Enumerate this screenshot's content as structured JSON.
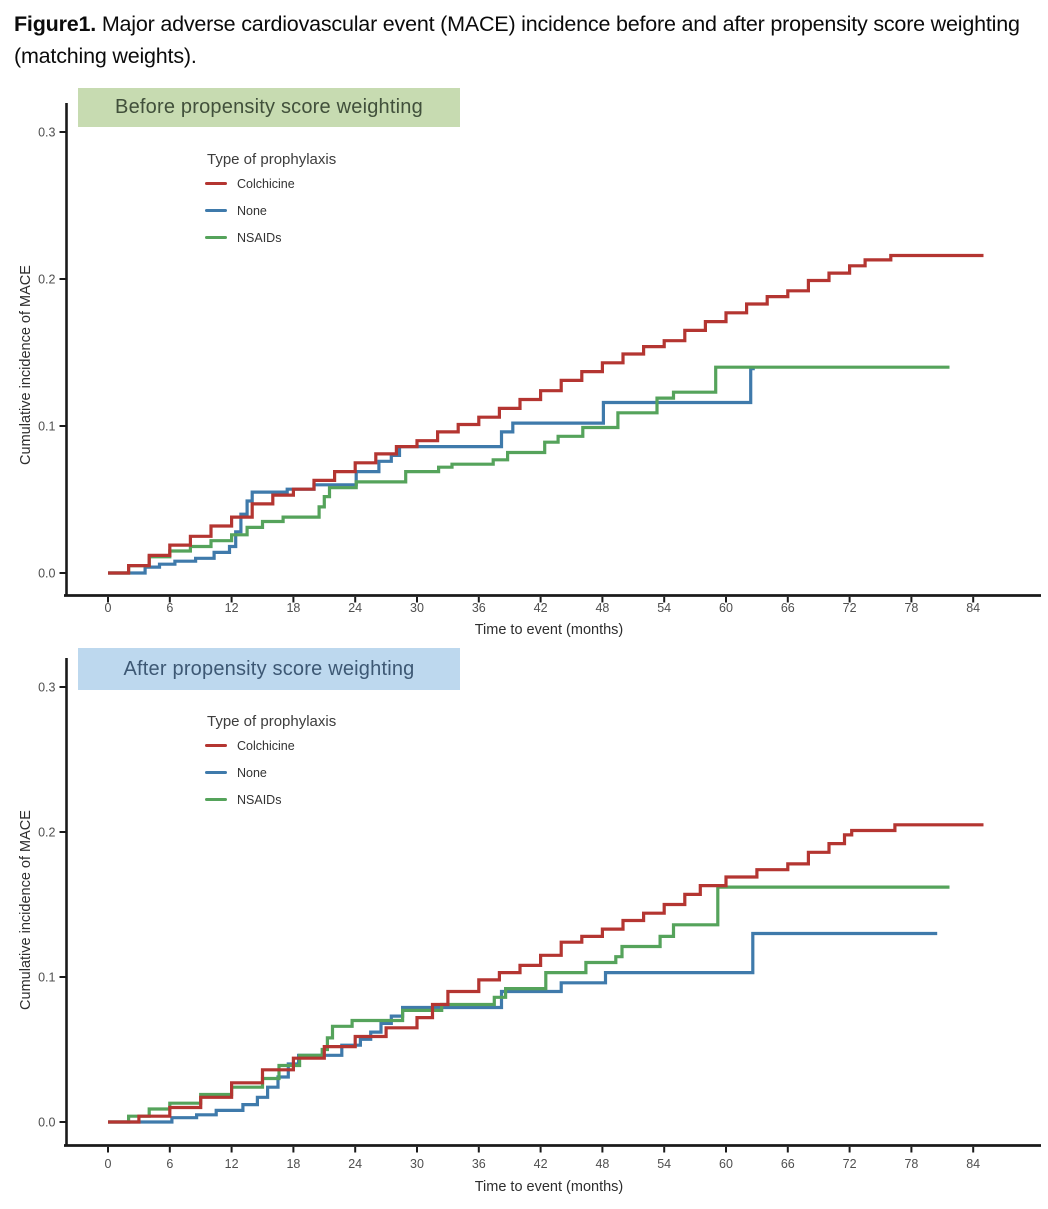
{
  "figure_title": {
    "label": "Figure1.",
    "text": "Major adverse cardiovascular event (MACE) incidence before and after propensity score weighting (matching weights)."
  },
  "colors": {
    "colchicine": "#b43531",
    "none": "#3f7aab",
    "nsaids": "#55a35b",
    "before_header_bg": "#c7dbb1",
    "before_header_text": "#41503b",
    "after_header_bg": "#bdd8ee",
    "after_header_text": "#3d5874",
    "axis_line": "#1a1a1a",
    "tick_label": "#4f4f4f",
    "axis_title": "#2e2e2e"
  },
  "chart_data": [
    {
      "type": "line",
      "step": true,
      "panel_label": "Before propensity score weighting",
      "legend": {
        "title": "Type of prophylaxis",
        "items": [
          {
            "label": "Colchicine",
            "color": "#b43531"
          },
          {
            "label": "None",
            "color": "#3f7aab"
          },
          {
            "label": "NSAIDs",
            "color": "#55a35b"
          }
        ]
      },
      "xlabel": "Time to event (months)",
      "ylabel": "Cumulative incidence of MACE",
      "x_ticks": [
        0,
        6,
        12,
        18,
        24,
        30,
        36,
        42,
        48,
        54,
        60,
        66,
        72,
        78,
        84
      ],
      "y_ticks": [
        "0.0",
        "0.1",
        "0.2",
        "0.3"
      ],
      "y_tick_values": [
        0,
        0.1,
        0.2,
        0.3
      ],
      "xlim": [
        0,
        87
      ],
      "ylim": [
        0,
        0.31
      ],
      "grid": false,
      "legend_position": "upper-left-inside",
      "series": [
        {
          "name": "Colchicine",
          "color": "#b43531",
          "points": [
            [
              0,
              0
            ],
            [
              2,
              0.005
            ],
            [
              4,
              0.012
            ],
            [
              6,
              0.019
            ],
            [
              8,
              0.025
            ],
            [
              10,
              0.032
            ],
            [
              12,
              0.038
            ],
            [
              14,
              0.047
            ],
            [
              16,
              0.053
            ],
            [
              18,
              0.057
            ],
            [
              20,
              0.063
            ],
            [
              22,
              0.069
            ],
            [
              24,
              0.075
            ],
            [
              26,
              0.081
            ],
            [
              28,
              0.086
            ],
            [
              30,
              0.09
            ],
            [
              32,
              0.096
            ],
            [
              34,
              0.101
            ],
            [
              36,
              0.106
            ],
            [
              38,
              0.112
            ],
            [
              40,
              0.118
            ],
            [
              42,
              0.124
            ],
            [
              44,
              0.131
            ],
            [
              46,
              0.137
            ],
            [
              48,
              0.143
            ],
            [
              50,
              0.149
            ],
            [
              52,
              0.154
            ],
            [
              54,
              0.158
            ],
            [
              56,
              0.165
            ],
            [
              58,
              0.171
            ],
            [
              60,
              0.177
            ],
            [
              62,
              0.183
            ],
            [
              64,
              0.188
            ],
            [
              66,
              0.192
            ],
            [
              68,
              0.199
            ],
            [
              70,
              0.204
            ],
            [
              72,
              0.209
            ],
            [
              73.5,
              0.213
            ],
            [
              76,
              0.216
            ],
            [
              85,
              0.216
            ]
          ]
        },
        {
          "name": "None",
          "color": "#3f7aab",
          "points": [
            [
              0,
              0
            ],
            [
              3.6,
              0.004
            ],
            [
              5,
              0.006
            ],
            [
              6.5,
              0.008
            ],
            [
              8.5,
              0.01
            ],
            [
              10.3,
              0.014
            ],
            [
              11.8,
              0.018
            ],
            [
              12.4,
              0.028
            ],
            [
              12.9,
              0.04
            ],
            [
              13.5,
              0.049
            ],
            [
              14,
              0.055
            ],
            [
              17.4,
              0.057
            ],
            [
              20,
              0.06
            ],
            [
              24.1,
              0.069
            ],
            [
              26.3,
              0.076
            ],
            [
              27.5,
              0.08
            ],
            [
              28.3,
              0.086
            ],
            [
              38.2,
              0.096
            ],
            [
              39.3,
              0.102
            ],
            [
              48.1,
              0.116
            ],
            [
              62.4,
              0.139
            ],
            [
              62.8,
              0.139
            ]
          ]
        },
        {
          "name": "NSAIDs",
          "color": "#55a35b",
          "points": [
            [
              0,
              0
            ],
            [
              2,
              0.005
            ],
            [
              4,
              0.011
            ],
            [
              6,
              0.015
            ],
            [
              8,
              0.018
            ],
            [
              10,
              0.022
            ],
            [
              12,
              0.026
            ],
            [
              13.5,
              0.031
            ],
            [
              15,
              0.035
            ],
            [
              17,
              0.038
            ],
            [
              20.5,
              0.045
            ],
            [
              21,
              0.052
            ],
            [
              21.5,
              0.058
            ],
            [
              24.1,
              0.062
            ],
            [
              28.9,
              0.069
            ],
            [
              32.1,
              0.072
            ],
            [
              33.4,
              0.074
            ],
            [
              37.4,
              0.077
            ],
            [
              38.8,
              0.082
            ],
            [
              42.4,
              0.089
            ],
            [
              43.7,
              0.093
            ],
            [
              46.1,
              0.099
            ],
            [
              49.5,
              0.109
            ],
            [
              53.3,
              0.119
            ],
            [
              54.9,
              0.123
            ],
            [
              59,
              0.14
            ],
            [
              81.7,
              0.14
            ]
          ]
        }
      ]
    },
    {
      "type": "line",
      "step": true,
      "panel_label": "After propensity score weighting",
      "legend": {
        "title": "Type of prophylaxis",
        "items": [
          {
            "label": "Colchicine",
            "color": "#b43531"
          },
          {
            "label": "None",
            "color": "#3f7aab"
          },
          {
            "label": "NSAIDs",
            "color": "#55a35b"
          }
        ]
      },
      "xlabel": "Time to event (months)",
      "ylabel": "Cumulative incidence of MACE",
      "x_ticks": [
        0,
        6,
        12,
        18,
        24,
        30,
        36,
        42,
        48,
        54,
        60,
        66,
        72,
        78,
        84
      ],
      "y_ticks": [
        "0.0",
        "0.1",
        "0.2",
        "0.3"
      ],
      "y_tick_values": [
        0,
        0.1,
        0.2,
        0.3
      ],
      "xlim": [
        0,
        87
      ],
      "ylim": [
        0,
        0.31
      ],
      "grid": false,
      "legend_position": "upper-left-inside",
      "series": [
        {
          "name": "Colchicine",
          "color": "#b43531",
          "points": [
            [
              0,
              0
            ],
            [
              3,
              0.004
            ],
            [
              6,
              0.01
            ],
            [
              9,
              0.017
            ],
            [
              12,
              0.027
            ],
            [
              15,
              0.036
            ],
            [
              18,
              0.044
            ],
            [
              21,
              0.052
            ],
            [
              24,
              0.059
            ],
            [
              27,
              0.065
            ],
            [
              30,
              0.072
            ],
            [
              31.5,
              0.081
            ],
            [
              33,
              0.09
            ],
            [
              36,
              0.098
            ],
            [
              38,
              0.103
            ],
            [
              40,
              0.108
            ],
            [
              42,
              0.115
            ],
            [
              44,
              0.124
            ],
            [
              46,
              0.128
            ],
            [
              48,
              0.133
            ],
            [
              50,
              0.139
            ],
            [
              52,
              0.144
            ],
            [
              54,
              0.15
            ],
            [
              56,
              0.157
            ],
            [
              57.5,
              0.163
            ],
            [
              60,
              0.169
            ],
            [
              63,
              0.174
            ],
            [
              66,
              0.178
            ],
            [
              68,
              0.186
            ],
            [
              70,
              0.192
            ],
            [
              71.5,
              0.198
            ],
            [
              72.2,
              0.201
            ],
            [
              76.4,
              0.205
            ],
            [
              85,
              0.205
            ]
          ]
        },
        {
          "name": "None",
          "color": "#3f7aab",
          "points": [
            [
              0,
              0
            ],
            [
              6.2,
              0.003
            ],
            [
              8.6,
              0.005
            ],
            [
              10.5,
              0.008
            ],
            [
              13.1,
              0.012
            ],
            [
              14.5,
              0.017
            ],
            [
              15.5,
              0.024
            ],
            [
              16.5,
              0.031
            ],
            [
              17.5,
              0.04
            ],
            [
              18.5,
              0.046
            ],
            [
              22.7,
              0.053
            ],
            [
              24.5,
              0.057
            ],
            [
              25.5,
              0.062
            ],
            [
              26.5,
              0.068
            ],
            [
              27.5,
              0.073
            ],
            [
              28.6,
              0.079
            ],
            [
              38.2,
              0.09
            ],
            [
              44,
              0.096
            ],
            [
              48.3,
              0.103
            ],
            [
              62.6,
              0.13
            ],
            [
              80.5,
              0.13
            ]
          ]
        },
        {
          "name": "NSAIDs",
          "color": "#55a35b",
          "points": [
            [
              0,
              0
            ],
            [
              2,
              0.004
            ],
            [
              4,
              0.009
            ],
            [
              6,
              0.013
            ],
            [
              9,
              0.019
            ],
            [
              12,
              0.024
            ],
            [
              15,
              0.03
            ],
            [
              16.6,
              0.039
            ],
            [
              18.6,
              0.046
            ],
            [
              20.8,
              0.05
            ],
            [
              21.3,
              0.058
            ],
            [
              21.8,
              0.066
            ],
            [
              23.7,
              0.07
            ],
            [
              28.6,
              0.077
            ],
            [
              32.4,
              0.081
            ],
            [
              37.5,
              0.086
            ],
            [
              38.6,
              0.092
            ],
            [
              42.5,
              0.103
            ],
            [
              46.4,
              0.11
            ],
            [
              49.3,
              0.114
            ],
            [
              49.9,
              0.121
            ],
            [
              53.6,
              0.128
            ],
            [
              54.9,
              0.136
            ],
            [
              59.2,
              0.162
            ],
            [
              81.7,
              0.162
            ]
          ]
        }
      ]
    }
  ]
}
